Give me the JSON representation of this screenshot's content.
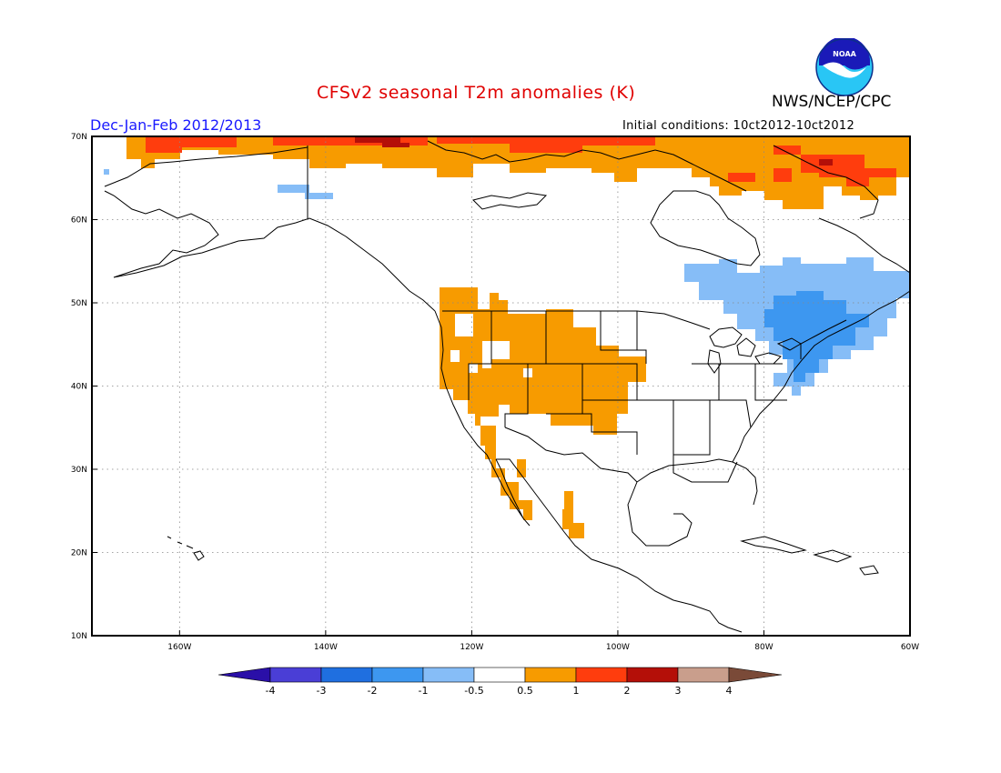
{
  "header": {
    "title": "CFSv2 seasonal T2m anomalies (K)",
    "agency": "NWS/NCEP/CPC",
    "season": "Dec-Jan-Feb 2012/2013",
    "initial_conditions": "Initial conditions: 10ct2012-10ct2012",
    "logo_text": "NOAA"
  },
  "map": {
    "lon_range": [
      -172,
      -60
    ],
    "lat_range": [
      10,
      70
    ],
    "lat_labels": [
      "70N",
      "60N",
      "50N",
      "40N",
      "30N",
      "20N",
      "10N"
    ],
    "lon_labels": [
      "160W",
      "140W",
      "120W",
      "100W",
      "80W",
      "60W"
    ]
  },
  "colorbar": {
    "labels": [
      "-4",
      "-3",
      "-2",
      "-1",
      "-0.5",
      "0.5",
      "1",
      "2",
      "3",
      "4"
    ],
    "colors": [
      "#2a0fa8",
      "#4a3ed6",
      "#1f6fe0",
      "#3d97f0",
      "#86bdf7",
      "#ffffff",
      "#f79b00",
      "#ff3d0d",
      "#b40f08",
      "#c99e8c",
      "#7a4a38"
    ]
  },
  "regions": [
    {
      "name": "arctic-warm-belt",
      "color": "#f79b00"
    },
    {
      "name": "arctic-strong-warm",
      "color": "#ff3d0d"
    },
    {
      "name": "arctic-very-strong-warm",
      "color": "#b40f08"
    },
    {
      "name": "western-us-warm",
      "color": "#f79b00"
    },
    {
      "name": "baja-warm",
      "color": "#f79b00"
    },
    {
      "name": "west-mexico-warm",
      "color": "#f79b00"
    },
    {
      "name": "northeast-cool",
      "color": "#86bdf7"
    },
    {
      "name": "northeast-cooler",
      "color": "#3d97f0"
    },
    {
      "name": "alaska-cool",
      "color": "#86bdf7"
    }
  ]
}
